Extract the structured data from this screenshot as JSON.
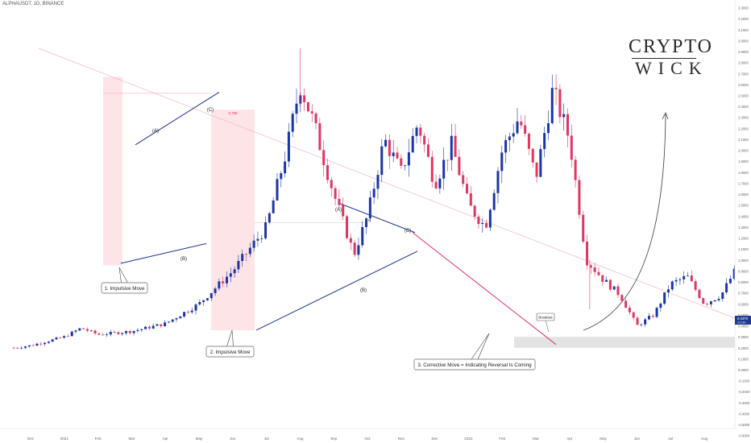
{
  "window": {
    "ticker": "ALPHAUSDT, 1D, BINANCE"
  },
  "logo": {
    "line1": "CRYPTO",
    "line2": "WICK"
  },
  "colors": {
    "up": "#1b36a8",
    "down": "#e0365f",
    "zone_fill": "#fde4e7",
    "trendline": "#1e2f8f",
    "channel": "#e03060",
    "support_zone": "#e3e3e3",
    "resistance": "#f0b8c0"
  },
  "chart_data": {
    "type": "candlestick",
    "yscale": "linear",
    "y_range": [
      -0.8,
      3.7
    ],
    "y_ticks": [
      "3.6000",
      "3.5000",
      "3.4000",
      "3.3000",
      "3.2000",
      "3.1000",
      "3.0000",
      "2.9000",
      "2.8000",
      "2.7000",
      "2.6000",
      "2.5000",
      "2.4000",
      "2.3000",
      "2.2000",
      "2.1000",
      "2.0000",
      "1.9000",
      "1.8000",
      "1.7000",
      "1.6000",
      "1.5000",
      "1.4000",
      "1.3000",
      "1.2000",
      "1.1000",
      "1.0000",
      "0.9000",
      "0.8000",
      "0.7000",
      "0.6000",
      "0.5000",
      "0.4000",
      "0.3000",
      "0.2000",
      "0.1000",
      "0.0000",
      "-0.1000",
      "-0.2000",
      "-0.3000",
      "-0.4000",
      "-0.5000",
      "-0.6000",
      "-0.7000"
    ],
    "x_ticks": [
      "Dec",
      "2021",
      "Feb",
      "Mar",
      "Apr",
      "May",
      "Jun",
      "Jul",
      "Aug",
      "Sep",
      "Oct",
      "Nov",
      "Dec",
      "2022",
      "Feb",
      "Mar",
      "Apr",
      "May",
      "Jun",
      "Jul",
      "Aug"
    ],
    "last_price": {
      "value": "0.4379",
      "sub": "3d 18h"
    },
    "price_path": [
      [
        -0.5,
        0.2
      ],
      [
        0,
        0.22
      ],
      [
        1,
        0.3
      ],
      [
        1.5,
        0.38
      ],
      [
        2,
        0.32
      ],
      [
        3,
        0.35
      ],
      [
        4,
        0.42
      ],
      [
        5,
        0.6
      ],
      [
        6,
        0.9
      ],
      [
        7,
        1.3
      ],
      [
        7.6,
        2.0
      ],
      [
        8.0,
        2.6
      ],
      [
        8.4,
        2.25
      ],
      [
        9.0,
        1.6
      ],
      [
        9.6,
        1.05
      ],
      [
        10.0,
        1.4
      ],
      [
        10.5,
        2.1
      ],
      [
        11,
        1.8
      ],
      [
        11.5,
        2.25
      ],
      [
        12,
        1.7
      ],
      [
        12.5,
        2.05
      ],
      [
        13,
        1.5
      ],
      [
        13.5,
        1.3
      ],
      [
        14,
        2.0
      ],
      [
        14.5,
        2.3
      ],
      [
        15,
        1.75
      ],
      [
        15.5,
        2.55
      ],
      [
        16,
        2.1
      ],
      [
        16.5,
        1.0
      ],
      [
        17,
        0.82
      ],
      [
        17.5,
        0.68
      ],
      [
        18,
        0.4
      ],
      [
        18.5,
        0.5
      ],
      [
        19,
        0.78
      ],
      [
        19.5,
        0.85
      ],
      [
        20,
        0.6
      ],
      [
        20.5,
        0.68
      ],
      [
        21,
        0.95
      ],
      [
        21.5,
        1.05
      ],
      [
        22,
        0.95
      ],
      [
        22.5,
        1.2
      ],
      [
        23,
        1.1
      ],
      [
        23.5,
        1.3
      ],
      [
        24,
        1.45
      ],
      [
        24.5,
        1.2
      ],
      [
        25,
        1.0
      ],
      [
        25.5,
        0.85
      ],
      [
        26,
        1.05
      ],
      [
        26.5,
        1.15
      ],
      [
        27,
        1.05
      ],
      [
        27.5,
        1.3
      ],
      [
        28,
        1.25
      ],
      [
        28.5,
        1.3
      ],
      [
        29,
        1.2
      ],
      [
        29.5,
        0.98
      ],
      [
        30,
        0.9
      ],
      [
        30.5,
        0.85
      ],
      [
        31,
        0.7
      ],
      [
        31.5,
        0.72
      ],
      [
        32,
        0.62
      ],
      [
        32.5,
        0.55
      ],
      [
        33,
        0.5
      ],
      [
        33.5,
        0.4
      ],
      [
        34,
        0.42
      ],
      [
        34.5,
        0.38
      ],
      [
        35,
        0.44
      ],
      [
        35.5,
        0.36
      ],
      [
        36,
        0.32
      ],
      [
        36.5,
        0.35
      ],
      [
        37,
        0.31
      ],
      [
        37.5,
        0.34
      ],
      [
        38,
        0.4
      ],
      [
        38.5,
        0.55
      ],
      [
        38.8,
        0.66
      ],
      [
        39.1,
        0.42
      ],
      [
        39.4,
        0.44
      ]
    ],
    "annotations": {
      "waves_1": [
        "(A)",
        "(B)",
        "(C)"
      ],
      "waves_2": [
        "(A)",
        "(B)",
        "(C)"
      ],
      "fib_1": "0.786",
      "fib_2": "0.5",
      "callouts": [
        "1. Impulsive Move",
        "2. Impulsive Move",
        "3. Corrective Move = Indicating Reversal Is Coming"
      ],
      "breakout": "Breakout"
    }
  }
}
